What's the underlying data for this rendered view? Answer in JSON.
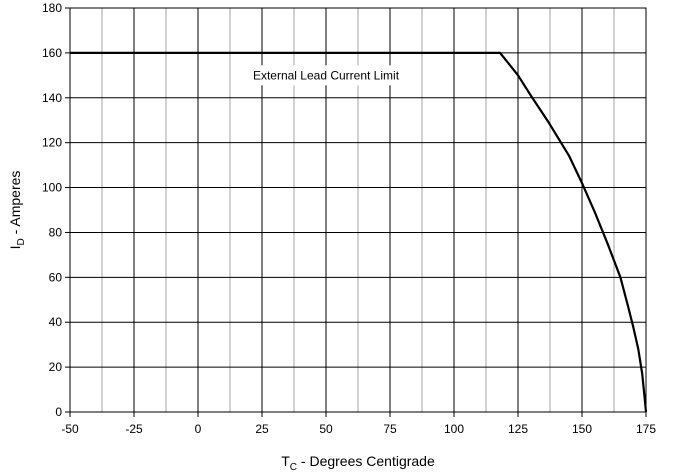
{
  "chart_data": {
    "type": "line",
    "title": "",
    "xlabel_main": "T",
    "xlabel_sub": "C",
    "xlabel_rest": " - Degrees Centigrade",
    "ylabel_main": "I",
    "ylabel_sub": "D",
    "ylabel_rest": " - Amperes",
    "xlim": [
      -50,
      175
    ],
    "ylim": [
      0,
      180
    ],
    "x_major_ticks": [
      -50,
      -25,
      0,
      25,
      50,
      75,
      100,
      125,
      150,
      175
    ],
    "x_minor_grid": [
      -37.5,
      -12.5,
      12.5,
      37.5,
      62.5,
      87.5,
      112.5,
      137.5,
      162.5
    ],
    "y_ticks": [
      0,
      20,
      40,
      60,
      80,
      100,
      120,
      140,
      160,
      180
    ],
    "grid": true,
    "annotation": "External Lead Current Limit",
    "annotation_anchor": [
      50,
      150
    ],
    "series": [
      {
        "x": [
          -50,
          118,
          125,
          130,
          137,
          145,
          150,
          155,
          160,
          165,
          168,
          170,
          172,
          173.5,
          174.5,
          175
        ],
        "y": [
          160,
          160,
          150,
          141,
          129,
          114,
          102,
          89,
          75,
          60,
          47,
          38,
          28,
          17,
          6,
          0
        ]
      }
    ]
  }
}
